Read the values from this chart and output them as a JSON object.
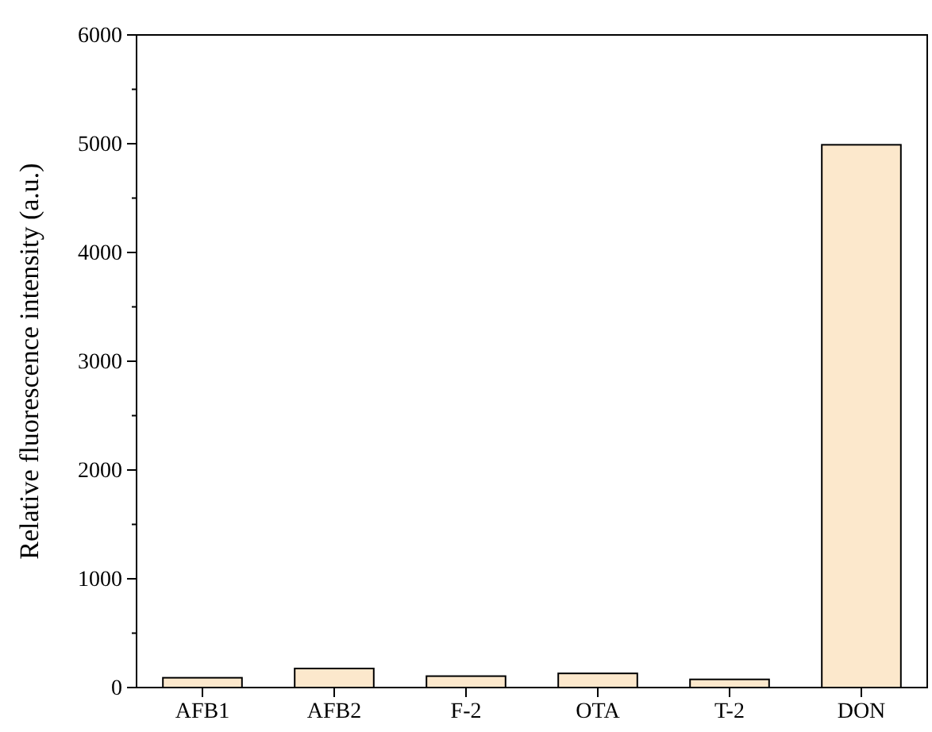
{
  "chart_data": {
    "type": "bar",
    "ylabel": "Relative fluorescence intensity (a.u.)",
    "categories": [
      "AFB1",
      "AFB2",
      "F-2",
      "OTA",
      "T-2",
      "DON"
    ],
    "values": [
      90,
      175,
      105,
      130,
      75,
      4990
    ],
    "color": "#fce8cc",
    "ylim": [
      0,
      6000
    ],
    "yticks": [
      0,
      {
        "value": 500,
        "label": null
      },
      1000,
      {
        "value": 1500,
        "label": null
      },
      2000,
      {
        "value": 2500,
        "label": null
      },
      3000,
      {
        "value": 3500,
        "label": null
      },
      4000,
      {
        "value": 4500,
        "label": null
      },
      5000,
      {
        "value": 5500,
        "label": null
      },
      6000
    ],
    "grid": false
  }
}
